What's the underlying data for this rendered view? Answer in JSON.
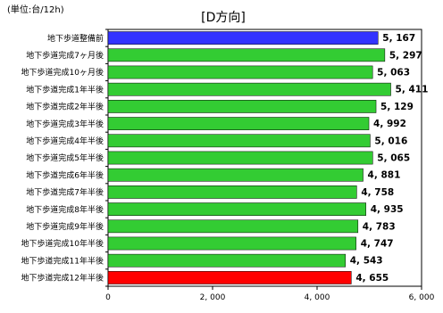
{
  "header": {
    "unit": "(単位:台/12h)",
    "title": "[D方向]"
  },
  "colors": {
    "default_bar": "#33cc33",
    "first_bar": "#3333ff",
    "last_bar": "#ff0000"
  },
  "chart_data": {
    "type": "bar",
    "orientation": "horizontal",
    "title": "[D方向]",
    "unit": "(単位:台/12h)",
    "categories": [
      "地下歩道整備前",
      "地下歩道完成7ヶ月後",
      "地下歩道完成10ヶ月後",
      "地下歩道完成1年半後",
      "地下歩道完成2年半後",
      "地下歩道完成3年半後",
      "地下歩道完成4年半後",
      "地下歩道完成5年半後",
      "地下歩道完成6年半後",
      "地下歩道完成7年半後",
      "地下歩道完成8年半後",
      "地下歩道完成9年半後",
      "地下歩道完成10年半後",
      "地下歩道完成11年半後",
      "地下歩道完成12年半後"
    ],
    "values": [
      5167,
      5297,
      5063,
      5411,
      5129,
      4992,
      5016,
      5065,
      4881,
      4758,
      4935,
      4783,
      4747,
      4543,
      4655
    ],
    "value_labels": [
      "5, 167",
      "5, 297",
      "5, 063",
      "5, 411",
      "5, 129",
      "4, 992",
      "5, 016",
      "5, 065",
      "4, 881",
      "4, 758",
      "4, 935",
      "4, 783",
      "4, 747",
      "4, 543",
      "4, 655"
    ],
    "xlim": [
      0,
      6000
    ],
    "xticks": [
      0,
      2000,
      4000,
      6000
    ],
    "xtick_labels": [
      "0",
      "2, 000",
      "4, 000",
      "6, 000"
    ],
    "grid": false,
    "legend": "none"
  }
}
